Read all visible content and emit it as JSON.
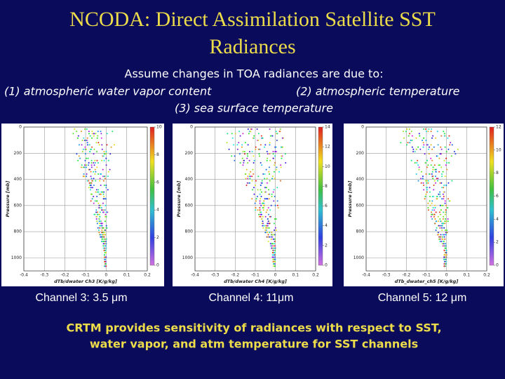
{
  "header": {
    "title_lines": [
      "NCODA: Direct Assimilation Satellite SST",
      "Radiances"
    ]
  },
  "intro": {
    "lead": "Assume changes in TOA radiances are due to:",
    "items": [
      "(1) atmospheric water vapor content",
      "(2) atmospheric temperature",
      "(3) sea surface temperature"
    ]
  },
  "panels": [
    {
      "caption": "Channel 3: 3.5 μm",
      "y_label": "Pressure [mb]",
      "x_label": "dTb/dwater Ch3 [K/g/kg]",
      "ylim": [
        0,
        1100
      ],
      "yticks": [
        0,
        200,
        400,
        600,
        800,
        1000
      ],
      "xlim": [
        -0.4,
        0.2
      ],
      "xticks": [
        -0.4,
        -0.3,
        -0.2,
        -0.1,
        0,
        0.1,
        0.2
      ],
      "colorbar_ticks": [
        0,
        2,
        4,
        6,
        8,
        10
      ]
    },
    {
      "caption": "Channel 4: 11μm",
      "y_label": "Pressure [mb]",
      "x_label": "dTb/dwater Ch4 [K/g/kg]",
      "ylim": [
        0,
        1100
      ],
      "yticks": [
        0,
        200,
        400,
        600,
        800,
        1000
      ],
      "xlim": [
        -0.4,
        0.2
      ],
      "xticks": [
        -0.4,
        -0.3,
        -0.2,
        -0.1,
        0,
        0.1,
        0.2
      ],
      "colorbar_ticks": [
        0,
        2,
        4,
        6,
        8,
        10,
        12,
        14
      ]
    },
    {
      "caption": "Channel 5: 12 μm",
      "y_label": "Pressure [mb]",
      "x_label": "dTb_dwater_ch5 [K/g/kg]",
      "ylim": [
        0,
        1100
      ],
      "yticks": [
        0,
        200,
        400,
        600,
        800,
        1000
      ],
      "xlim": [
        -0.4,
        0.2
      ],
      "xticks": [
        -0.4,
        -0.3,
        -0.2,
        -0.1,
        0,
        0.1,
        0.2
      ],
      "colorbar_ticks": [
        0,
        2,
        4,
        6,
        8,
        10,
        12
      ]
    }
  ],
  "footer": {
    "lines": [
      "CRTM provides sensitivity of radiances with respect to SST,",
      "water vapor, and atm temperature for SST channels"
    ]
  }
}
